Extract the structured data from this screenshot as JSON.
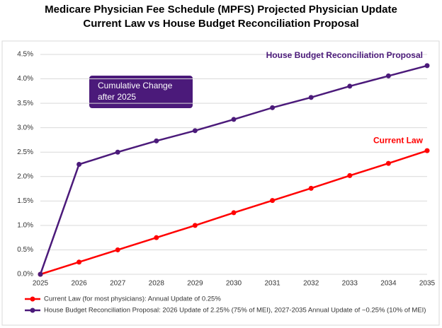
{
  "chart_data": {
    "type": "line",
    "title": "Medicare Physician Fee Schedule (MPFS) Projected Physician Update",
    "subtitle": "Current Law vs House Budget Reconciliation Proposal",
    "categories": [
      "2025",
      "2026",
      "2027",
      "2028",
      "2029",
      "2030",
      "2031",
      "2032",
      "2033",
      "2034",
      "2035"
    ],
    "series": [
      {
        "name": "Current Law (for most physicians): Annual Update of 0.25%",
        "color": "#ff0000",
        "label": "Current Law",
        "values": [
          0,
          0.25,
          0.5,
          0.75,
          1.0,
          1.26,
          1.51,
          1.76,
          2.02,
          2.27,
          2.53
        ]
      },
      {
        "name": "House Budget Reconciliation Proposal: 2026 Update of 2.25% (75% of MEI), 2027-2035 Annual Update of ~0.25% (10% of MEI)",
        "color": "#4b1a7a",
        "label": "House Budget Reconciliation Proposal",
        "values": [
          0,
          2.25,
          2.5,
          2.73,
          2.94,
          3.17,
          3.41,
          3.62,
          3.85,
          4.06,
          4.27
        ]
      }
    ],
    "annotation": [
      "Cumulative Change",
      "after 2025"
    ],
    "ylim": [
      0,
      4.5
    ],
    "yticks": [
      {
        "value": 0,
        "label": "0.0%"
      },
      {
        "value": 0.5,
        "label": "0.5%"
      },
      {
        "value": 1.0,
        "label": "1.0%"
      },
      {
        "value": 1.5,
        "label": "1.5%"
      },
      {
        "value": 2.0,
        "label": "2.0%"
      },
      {
        "value": 2.5,
        "label": "2.5%"
      },
      {
        "value": 3.0,
        "label": "3.0%"
      },
      {
        "value": 3.5,
        "label": "3.5%"
      },
      {
        "value": 4.0,
        "label": "4.0%"
      },
      {
        "value": 4.5,
        "label": "4.5%"
      }
    ],
    "grid": true
  }
}
